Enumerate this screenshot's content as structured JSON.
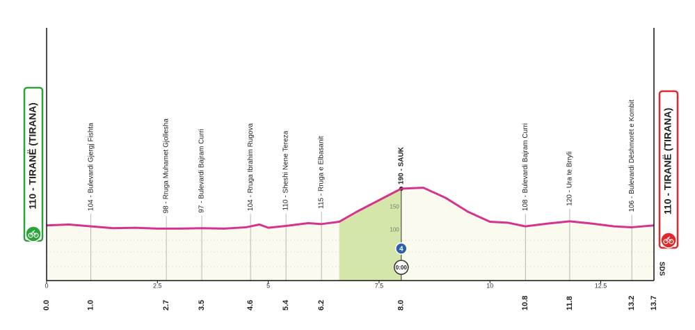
{
  "chart_data": {
    "type": "area",
    "x": [
      0,
      0.5,
      1.0,
      1.5,
      2.0,
      2.5,
      3.0,
      3.5,
      4.0,
      4.5,
      4.8,
      5.0,
      5.4,
      5.9,
      6.2,
      6.6,
      7.0,
      7.5,
      8.0,
      8.5,
      9.0,
      9.5,
      10.0,
      10.4,
      10.8,
      11.3,
      11.8,
      12.3,
      12.8,
      13.2,
      13.7
    ],
    "values": [
      110,
      112,
      108,
      104,
      105,
      103,
      103,
      104,
      103,
      106,
      112,
      105,
      109,
      115,
      113,
      118,
      140,
      165,
      190,
      192,
      170,
      140,
      118,
      116,
      108,
      114,
      119,
      114,
      108,
      106,
      110
    ],
    "color": "#d6338f",
    "fill": "#fafbee",
    "xlim": [
      0,
      13.7
    ],
    "ylim": [
      -10,
      540
    ],
    "xticks": [
      0,
      2.5,
      5,
      7.5,
      10,
      12.5
    ],
    "yticks": [
      100,
      150
    ],
    "climb": {
      "start": 6.6,
      "end": 8.0,
      "color": "#d4e6a9",
      "category": "4",
      "time": "0:00"
    },
    "waypoints": [
      {
        "km": {
          "value": 0,
          "label": "0.0"
        }
      },
      {
        "km": {
          "value": 1.0,
          "label": "1.0"
        },
        "label": "104 - Bulevardi Gjergj Fishta"
      },
      {
        "km": {
          "value": 2.7,
          "label": "2.7"
        },
        "label": "98 - Rruga Muhamet Gjollesha"
      },
      {
        "km": {
          "value": 3.5,
          "label": "3.5"
        },
        "label": "97 - Bulevardi Bajram Curri"
      },
      {
        "km": {
          "value": 4.6,
          "label": "4.6"
        },
        "label": "104 - Rruga Ibrahim Rugova"
      },
      {
        "km": {
          "value": 5.4,
          "label": "5.4"
        },
        "label": "110 - Sheshi Nene Tereza"
      },
      {
        "km": {
          "value": 6.2,
          "label": "6.2"
        },
        "label": "115 - Rruga e Elbasanit"
      },
      {
        "km": {
          "value": 8.0,
          "label": "8.0"
        },
        "label": "190 - SAUK",
        "bold": true
      },
      {
        "km": {
          "value": 10.8,
          "label": "10.8"
        },
        "label": "108 - Bulevardi Bajram Curri"
      },
      {
        "km": {
          "value": 11.8,
          "label": "11.8"
        },
        "label": "120 - Ura te Brryli"
      },
      {
        "km": {
          "value": 13.2,
          "label": "13.2"
        },
        "label": "106 - Bulevardi Dëshmorët e Kombit"
      },
      {
        "km": {
          "value": 13.7,
          "label": "13.7"
        }
      }
    ],
    "start": {
      "label": "110 - TIRANË (TIRANA)",
      "color": "#2aa33b"
    },
    "finish": {
      "label": "110 - TIRANË (TIRANA)",
      "color": "#e3262b"
    },
    "logo": "SDS"
  }
}
